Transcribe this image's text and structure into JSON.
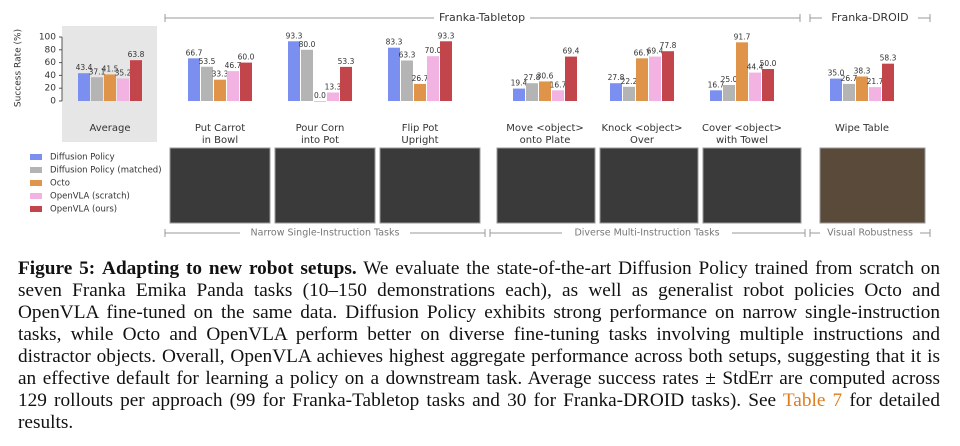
{
  "chart_data": {
    "type": "bar",
    "y_label": "Success Rate (%)",
    "ylim": [
      0,
      100
    ],
    "yticks": [
      0,
      20,
      40,
      60,
      80,
      100
    ],
    "categories": [
      [
        "Average"
      ],
      [
        "Put Carrot",
        "in Bowl"
      ],
      [
        "Pour Corn",
        "into Pot"
      ],
      [
        "Flip Pot",
        "Upright"
      ],
      [
        "Move <object>",
        "onto Plate"
      ],
      [
        "Knock <object>",
        "Over"
      ],
      [
        "Cover <object>",
        "with Towel"
      ],
      [
        "Wipe Table"
      ]
    ],
    "series": [
      {
        "name": "Diffusion Policy",
        "color": "#7b8ff0",
        "values": [
          43.4,
          66.7,
          93.3,
          83.3,
          19.4,
          27.8,
          16.7,
          35.0
        ],
        "value_labels": [
          "43.4",
          "66.7",
          "93.3",
          "83.3",
          "19.4",
          "27.8",
          "16.7",
          "35.0"
        ]
      },
      {
        "name": "Diffusion Policy (matched)",
        "color": "#b4b4b4",
        "values": [
          37.1,
          53.5,
          80.0,
          63.3,
          27.8,
          22.2,
          25.0,
          26.7
        ],
        "value_labels": [
          "37.1",
          "53.5",
          "80.0",
          "63.3",
          "27.8",
          "22.2",
          "25.0",
          "26.7"
        ]
      },
      {
        "name": "Octo",
        "color": "#e0944a",
        "values": [
          41.5,
          33.3,
          0.0,
          26.7,
          30.6,
          66.7,
          91.7,
          38.3
        ],
        "value_labels": [
          "41.5",
          "33.3",
          "0.0",
          "26.7",
          "30.6",
          "66.7",
          "91.7",
          "38.3"
        ]
      },
      {
        "name": "OpenVLA (scratch)",
        "color": "#f2b3e3",
        "values": [
          35.2,
          46.7,
          13.3,
          70.0,
          16.7,
          69.4,
          44.4,
          21.7
        ],
        "value_labels": [
          "35.2",
          "46.7",
          "13.3",
          "70.0",
          "16.7",
          "69.4",
          "44.4",
          "21.7"
        ]
      },
      {
        "name": "OpenVLA (ours)",
        "color": "#c2454b",
        "values": [
          63.8,
          60.0,
          53.3,
          93.3,
          69.4,
          77.8,
          50.0,
          58.3
        ],
        "value_labels": [
          "63.8",
          "60.0",
          "53.3",
          "93.3",
          "69.4",
          "77.8",
          "50.0",
          "58.3"
        ]
      }
    ],
    "section_labels": [
      "Franka-Tabletop",
      "Franka-DROID"
    ],
    "task_groups": [
      "Narrow Single-Instruction Tasks",
      "Diverse Multi-Instruction Tasks",
      "Visual Robustness"
    ]
  },
  "caption": {
    "label": "Figure 5:",
    "heading": "Adapting to new robot setups.",
    "text": "We evaluate the state-of-the-art Diffusion Policy trained from scratch on seven Franka Emika Panda tasks (10–150 demonstrations each), as well as generalist robot policies Octo and OpenVLA fine-tuned on the same data. Diffusion Policy exhibits strong performance on narrow single-instruction tasks, while Octo and OpenVLA perform better on diverse fine-tuning tasks involving multiple instructions and distractor objects. Overall, OpenVLA achieves highest aggregate performance across both setups, suggesting that it is an effective default for learning a policy on a downstream task. Average success rates ± StdErr are computed across 129 rollouts per approach (99 for Franka-Tabletop tasks and 30 for Franka-DROID tasks). See",
    "link": "Table 7",
    "end": "for detailed results."
  }
}
